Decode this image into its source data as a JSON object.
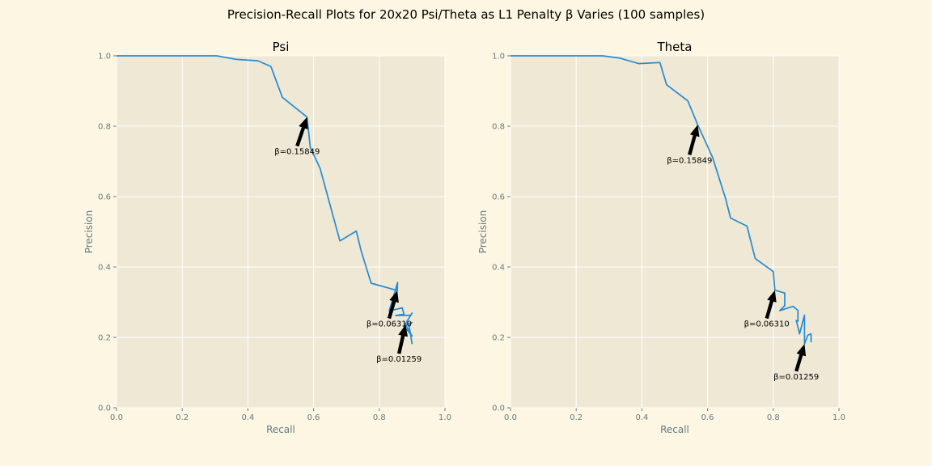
{
  "figure": {
    "suptitle": "Precision-Recall Plots for 20x20 Psi/Theta as L1 Penalty β Varies (100 samples)",
    "background": "#fdf6e3",
    "axes_background": "#eee8d5",
    "grid_color": "#ffffff",
    "line_color": "#268bd2",
    "tick_color": "#657b83"
  },
  "chart_data": [
    {
      "type": "line",
      "title": "Psi",
      "xlabel": "Recall",
      "ylabel": "Precision",
      "xlim": [
        0.0,
        1.0
      ],
      "ylim": [
        0.0,
        1.0
      ],
      "xticks": [
        "0.0",
        "0.2",
        "0.4",
        "0.6",
        "0.8",
        "1.0"
      ],
      "yticks": [
        "0.0",
        "0.2",
        "0.4",
        "0.6",
        "0.8",
        "1.0"
      ],
      "grid": true,
      "x": [
        0.0,
        0.15,
        0.305,
        0.365,
        0.43,
        0.47,
        0.505,
        0.58,
        0.59,
        0.62,
        0.68,
        0.73,
        0.745,
        0.775,
        0.855,
        0.856,
        0.83,
        0.87,
        0.875,
        0.85,
        0.895,
        0.9,
        0.875,
        0.9,
        0.88,
        0.9,
        0.89,
        0.9
      ],
      "y": [
        1.0,
        1.0,
        1.0,
        0.99,
        0.986,
        0.97,
        0.882,
        0.826,
        0.74,
        0.68,
        0.474,
        0.502,
        0.445,
        0.354,
        0.333,
        0.356,
        0.275,
        0.284,
        0.266,
        0.262,
        0.263,
        0.269,
        0.232,
        0.204,
        0.236,
        0.242,
        0.238,
        0.181
      ],
      "annotations": [
        {
          "text": "β=0.15849",
          "x": 0.58,
          "y": 0.826,
          "text_x": 0.55,
          "text_y": 0.73
        },
        {
          "text": "β=0.06310",
          "x": 0.855,
          "y": 0.333,
          "text_x": 0.83,
          "text_y": 0.24
        },
        {
          "text": "β=0.01259",
          "x": 0.88,
          "y": 0.236,
          "text_x": 0.86,
          "text_y": 0.14
        }
      ]
    },
    {
      "type": "line",
      "title": "Theta",
      "xlabel": "Recall",
      "ylabel": "Precision",
      "xlim": [
        0.0,
        1.0
      ],
      "ylim": [
        0.0,
        1.0
      ],
      "xticks": [
        "0.0",
        "0.2",
        "0.4",
        "0.6",
        "0.8",
        "1.0"
      ],
      "yticks": [
        "0.0",
        "0.2",
        "0.4",
        "0.6",
        "0.8",
        "1.0"
      ],
      "grid": true,
      "x": [
        0.0,
        0.28,
        0.33,
        0.39,
        0.455,
        0.475,
        0.54,
        0.57,
        0.615,
        0.655,
        0.67,
        0.72,
        0.745,
        0.8,
        0.805,
        0.835,
        0.835,
        0.82,
        0.86,
        0.875,
        0.875,
        0.87,
        0.88,
        0.895,
        0.895,
        0.905,
        0.915,
        0.915
      ],
      "y": [
        1.0,
        1.0,
        0.994,
        0.978,
        0.981,
        0.918,
        0.872,
        0.804,
        0.712,
        0.594,
        0.539,
        0.516,
        0.424,
        0.387,
        0.334,
        0.326,
        0.29,
        0.276,
        0.288,
        0.277,
        0.246,
        0.248,
        0.21,
        0.263,
        0.181,
        0.206,
        0.21,
        0.186
      ],
      "annotations": [
        {
          "text": "β=0.15849",
          "x": 0.57,
          "y": 0.804,
          "text_x": 0.545,
          "text_y": 0.705
        },
        {
          "text": "β=0.06310",
          "x": 0.805,
          "y": 0.334,
          "text_x": 0.78,
          "text_y": 0.24
        },
        {
          "text": "β=0.01259",
          "x": 0.895,
          "y": 0.181,
          "text_x": 0.87,
          "text_y": 0.09
        }
      ]
    }
  ]
}
